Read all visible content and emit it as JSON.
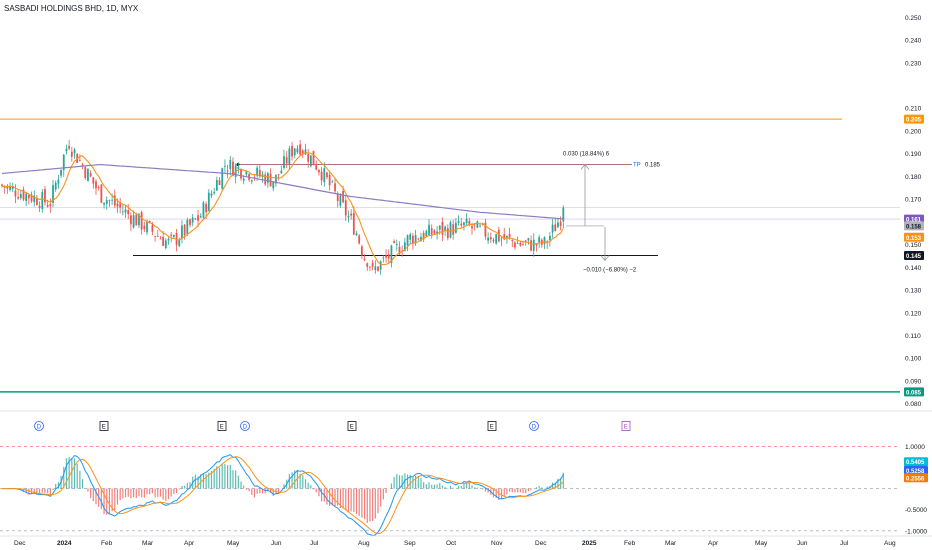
{
  "header": {
    "title": "SASBADI HOLDINGS BHD, 1D, MYX"
  },
  "chart_data": {
    "type": "candlestick",
    "title": "SASBADI HOLDINGS BHD, 1D, MYX",
    "price_axis": {
      "ticks": [
        0.08,
        0.09,
        0.1,
        0.11,
        0.12,
        0.13,
        0.14,
        0.15,
        0.16,
        0.17,
        0.18,
        0.19,
        0.2,
        0.21,
        0.23,
        0.24,
        0.25
      ],
      "tick_labels": [
        "0.080",
        "0.090",
        "0.100",
        "0.110",
        "0.120",
        "0.130",
        "0.140",
        "0.150",
        "0.160",
        "0.170",
        "0.180",
        "0.190",
        "0.200",
        "0.210",
        "0.230",
        "0.240",
        "0.250"
      ],
      "range": [
        0.077,
        0.253
      ]
    },
    "time_axis": {
      "labels": [
        "Dec",
        "2024",
        "Feb",
        "Mar",
        "Apr",
        "May",
        "Jun",
        "Jul",
        "Aug",
        "Sep",
        "Oct",
        "Nov",
        "Dec",
        "2025",
        "Feb",
        "Mar",
        "Apr",
        "May",
        "Jun",
        "Jul",
        "Aug"
      ],
      "bold": [
        "2024",
        "2025"
      ]
    },
    "series": [
      {
        "name": "Price",
        "color": "#26a69a",
        "down_color": "#ef5350"
      },
      {
        "name": "MA fast",
        "color": "#f7931a"
      },
      {
        "name": "MA slow",
        "color": "#2962ff"
      },
      {
        "name": "MA long",
        "color": "#8e7cc3"
      }
    ],
    "candles_approx": {
      "key_points": [
        {
          "time": "Dec",
          "close": 0.176
        },
        {
          "time": "2024",
          "close": 0.168
        },
        {
          "time": "2024",
          "close": 0.195,
          "note": "spike high"
        },
        {
          "time": "Feb",
          "close": 0.172
        },
        {
          "time": "Mar",
          "close": 0.15
        },
        {
          "time": "Apr",
          "close": 0.162
        },
        {
          "time": "May",
          "close": 0.185
        },
        {
          "time": "Jun",
          "close": 0.178
        },
        {
          "time": "Jun",
          "close": 0.195,
          "note": "spike high"
        },
        {
          "time": "Jul",
          "close": 0.183
        },
        {
          "time": "Aug",
          "close": 0.157
        },
        {
          "time": "Aug",
          "close": 0.137,
          "note": "spike low"
        },
        {
          "time": "Sep",
          "close": 0.153
        },
        {
          "time": "Oct",
          "close": 0.158
        },
        {
          "time": "Nov",
          "close": 0.15
        },
        {
          "time": "Dec",
          "close": 0.15
        },
        {
          "time": "Dec",
          "close": 0.166,
          "note": "last"
        }
      ]
    },
    "horizontal_lines": [
      {
        "value": 0.205,
        "color": "#ff9800",
        "label": "0.205"
      },
      {
        "value": 0.145,
        "color": "#131722",
        "label": "0.145"
      },
      {
        "value": 0.085,
        "color": "#089981",
        "label": "0.085"
      },
      {
        "value": 0.185,
        "color": "#b2707a",
        "label": "0.185"
      }
    ],
    "price_labels": [
      {
        "value": 0.161,
        "color": "#7e57c2",
        "text": "0.161"
      },
      {
        "value": 0.158,
        "color": "#b2b5be",
        "text": "0.158"
      },
      {
        "value": 0.153,
        "color": "#f7931a",
        "text": "0.153"
      }
    ],
    "annotations": {
      "tp_label": "TP",
      "tp_value": "0.185",
      "up_measure": "0.030 (18.84%) 6",
      "down_measure": "−0.010 (−6.80%) −2"
    },
    "event_markers": [
      {
        "symbol": "D",
        "time": "Dec",
        "kind": "dividend"
      },
      {
        "symbol": "E",
        "time": "2024",
        "kind": "earnings"
      },
      {
        "symbol": "E",
        "time": "Apr",
        "kind": "earnings"
      },
      {
        "symbol": "D",
        "time": "May",
        "kind": "dividend"
      },
      {
        "symbol": "E",
        "time": "Jul",
        "kind": "earnings"
      },
      {
        "symbol": "E",
        "time": "Oct",
        "kind": "earnings"
      },
      {
        "symbol": "D",
        "time": "Nov",
        "kind": "dividend"
      },
      {
        "symbol": "E",
        "time": "Feb",
        "kind": "earnings-upcoming"
      }
    ],
    "oscillator": {
      "ticks": [
        "1.0000",
        "-0.5000",
        "-1.0000"
      ],
      "tick_values": [
        1.0,
        -0.5,
        -1.0
      ],
      "range": [
        -1.1,
        1.15
      ],
      "labels": [
        {
          "text": "0.5405",
          "value": 0.5405,
          "color": "#00bcd4"
        },
        {
          "text": "0.5258",
          "value": 0.5258,
          "color": "#2962ff"
        },
        {
          "text": "0.2556",
          "value": 0.2556,
          "color": "#f57c00"
        }
      ]
    }
  },
  "colors": {
    "up": "#26a69a",
    "down": "#ef5350",
    "ma_fast": "#f7931a",
    "ma_long": "#8e7cc3",
    "macd": "#2196f3",
    "signal": "#f7931a",
    "resistance": "#ff9800",
    "support_teal": "#089981"
  }
}
